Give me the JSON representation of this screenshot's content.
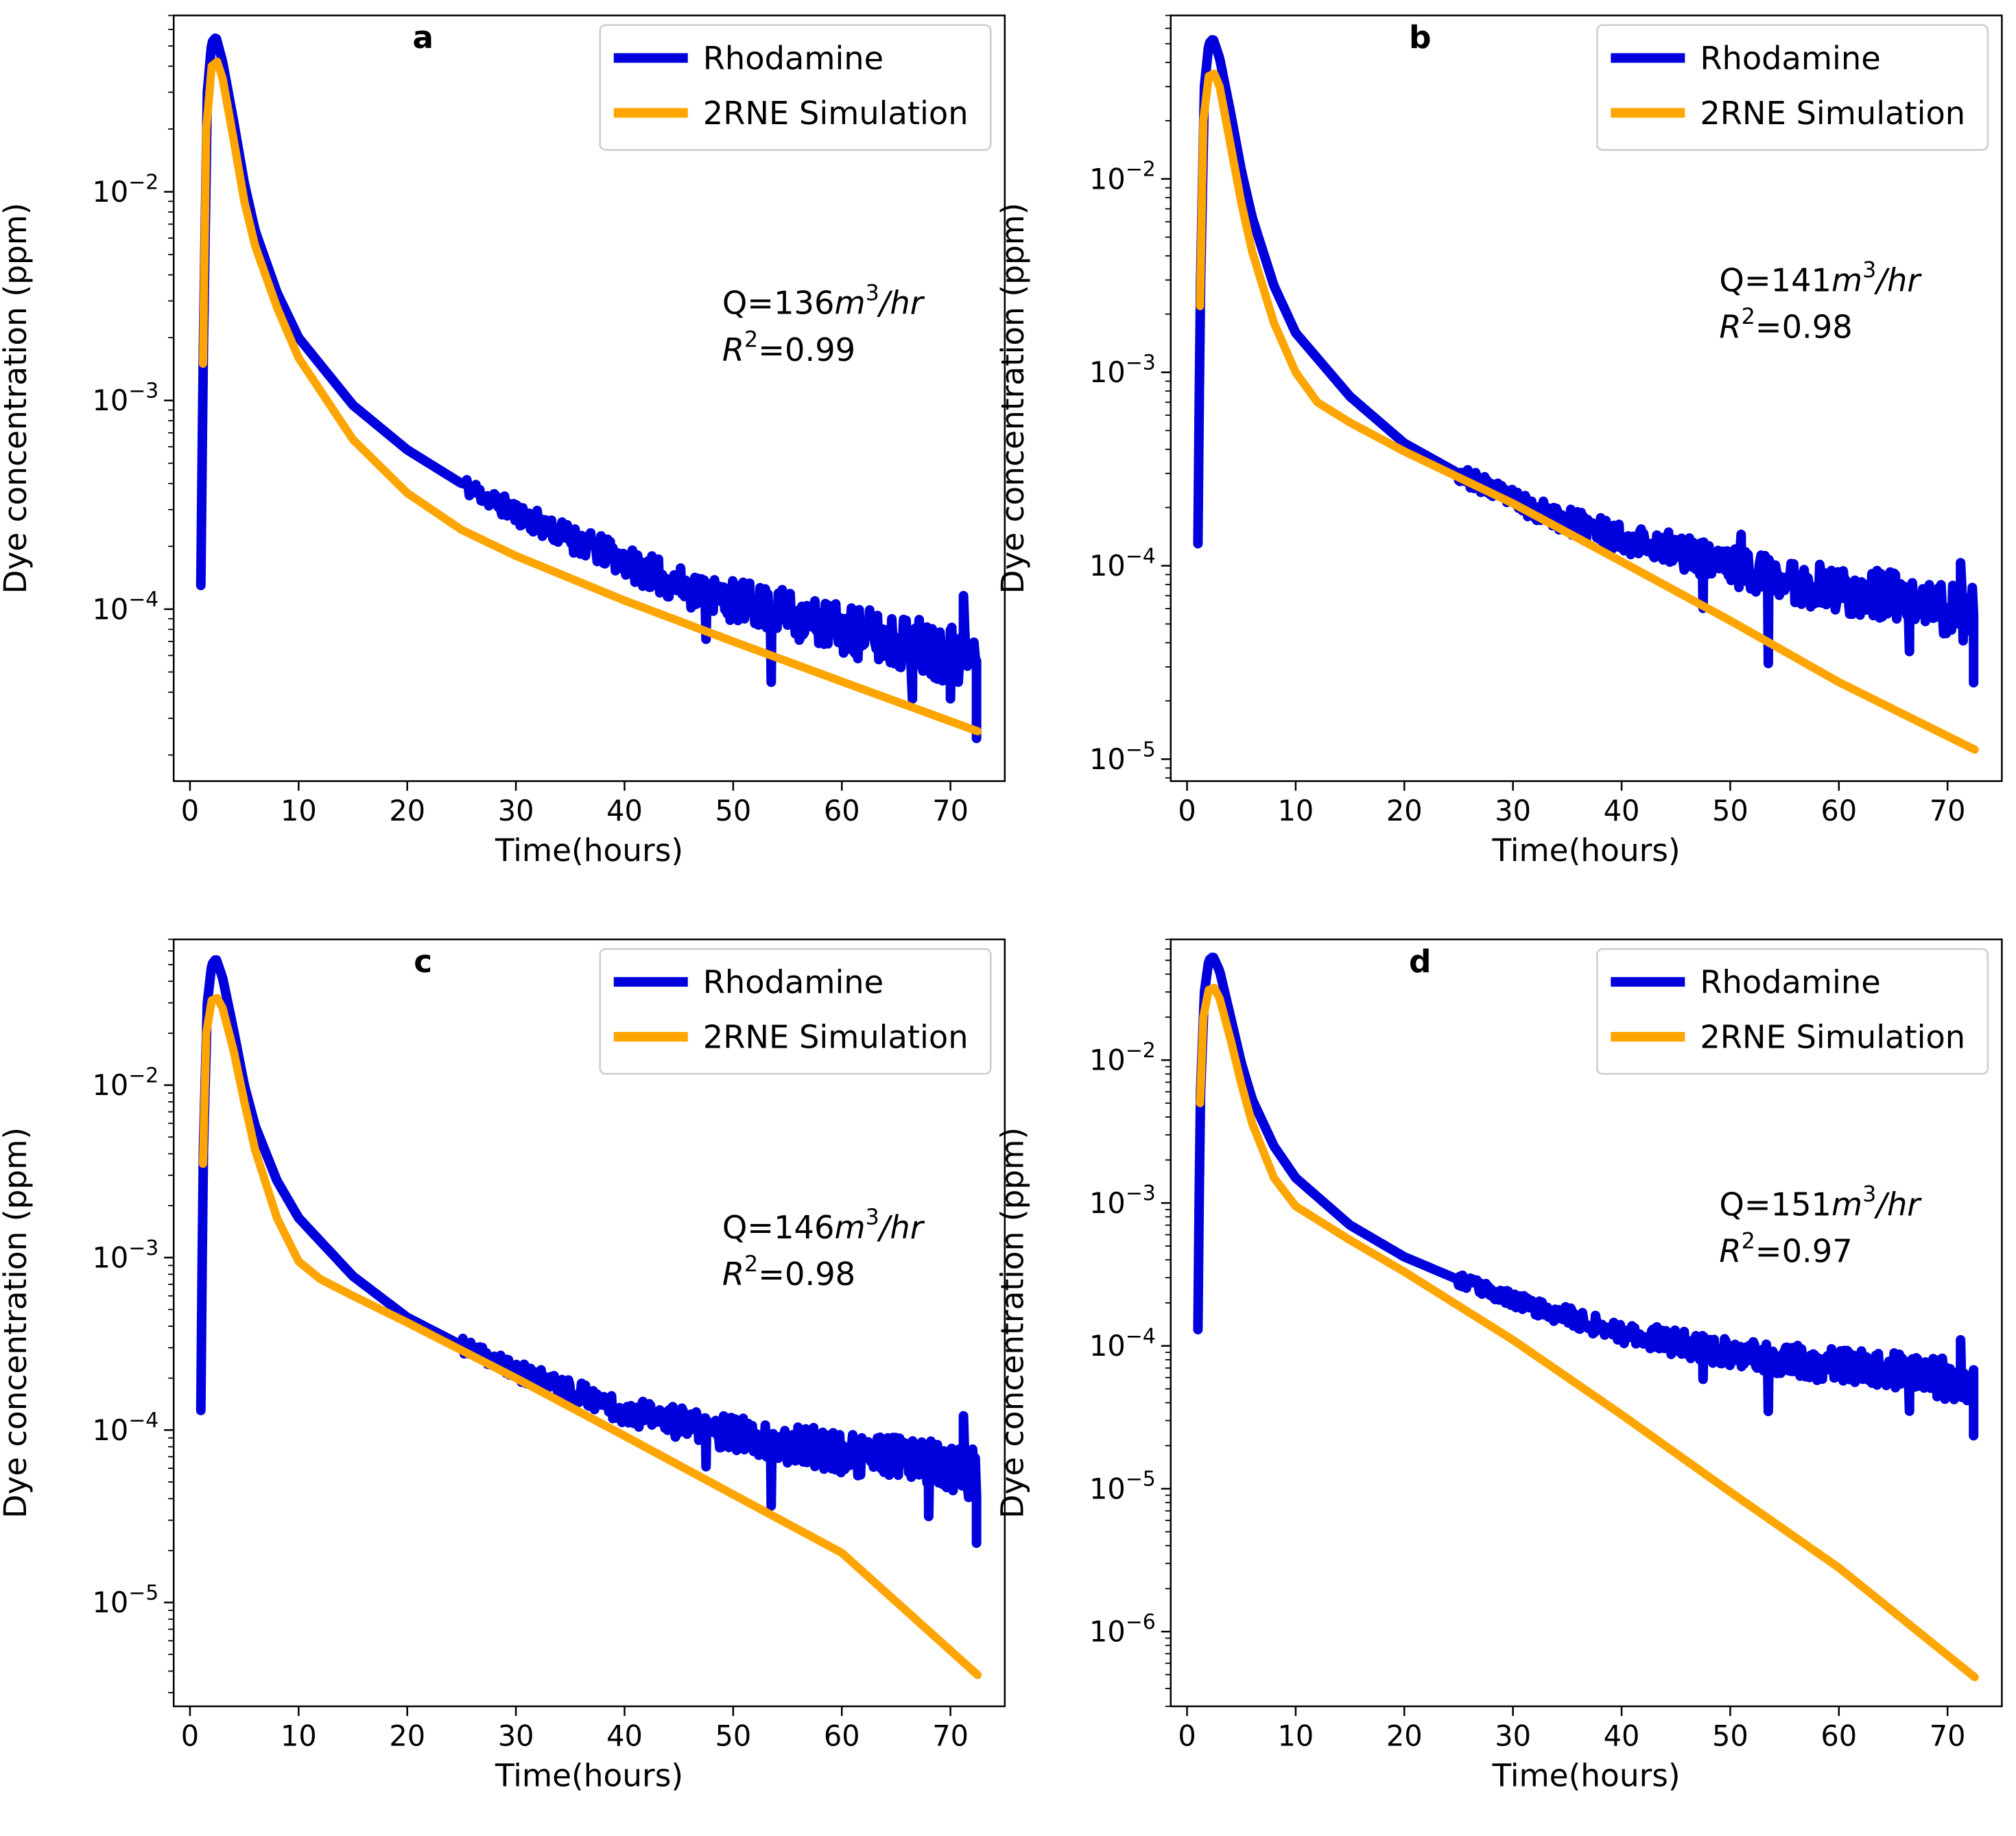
{
  "figure": {
    "background": "#ffffff"
  },
  "legend": {
    "observed_label": "Rhodamine",
    "simulated_label": "2RNE Simulation",
    "observed_color": "#0000dd",
    "simulated_color": "#ffa500"
  },
  "chart_data": [
    {
      "id": "a",
      "panel_label": "a",
      "type": "line",
      "xlabel": "Time(hours)",
      "ylabel": "Dye concentration (ppm)",
      "yscale": "log",
      "xlim": [
        -1.5,
        75
      ],
      "ylim": [
        1.5e-05,
        0.07
      ],
      "x_ticks": [
        {
          "v": 10,
          "label": "10"
        },
        {
          "v": 20,
          "label": "20"
        },
        {
          "v": 30,
          "label": "30"
        },
        {
          "v": 40,
          "label": "40"
        },
        {
          "v": 50,
          "label": "50"
        },
        {
          "v": 60,
          "label": "60"
        },
        {
          "v": 70,
          "label": "70"
        },
        {
          "v": 0,
          "label": "0"
        }
      ],
      "y_ticks": [
        {
          "exp": -2,
          "base": "10",
          "sup": "−2"
        },
        {
          "exp": -3,
          "base": "10",
          "sup": "−3"
        },
        {
          "exp": -4,
          "base": "10",
          "sup": "−4"
        }
      ],
      "annotation": {
        "q_prefix": "Q=136",
        "q_unit": "m",
        "q_exp": "3",
        "q_suffix": "/hr",
        "r2_symbol": "R",
        "r2_exp": "2",
        "r2_value": "=0.99"
      },
      "series": [
        {
          "name": "Rhodamine",
          "role": "observed",
          "color": "#0000dd",
          "x": [
            1.0,
            1.2,
            1.6,
            2.0,
            2.4,
            3.0,
            4.0,
            5.0,
            6.0,
            8.0,
            10,
            15,
            20,
            25,
            30,
            35,
            40,
            45,
            50,
            55,
            60,
            65,
            70,
            72.5
          ],
          "y": [
            0.00013,
            0.0014,
            0.03,
            0.052,
            0.055,
            0.042,
            0.022,
            0.011,
            0.0065,
            0.0033,
            0.002,
            0.00095,
            0.00058,
            0.0004,
            0.00029,
            0.00022,
            0.00017,
            0.00013,
            0.00011,
            9.5e-05,
            8e-05,
            7e-05,
            6.2e-05,
            6e-05
          ],
          "noise": {
            "start_x": 25,
            "seed": 11,
            "base_sigma": 0.1,
            "growth": 0.25,
            "spikes": [
              {
                "x": 47.5,
                "f": 0.6
              },
              {
                "x": 53.5,
                "f": 0.45
              },
              {
                "x": 71.2,
                "f": 1.9
              },
              {
                "x": 66.5,
                "f": 0.55
              },
              {
                "x": 70.0,
                "f": 0.6
              },
              {
                "x": 72.4,
                "f": 0.4
              }
            ]
          }
        },
        {
          "name": "2RNE Simulation",
          "role": "simulated",
          "color": "#ffa500",
          "x": [
            1.2,
            1.5,
            2.0,
            2.5,
            3.0,
            4.0,
            5.0,
            6.0,
            8.0,
            10,
            15,
            20,
            25,
            30,
            40,
            50,
            60,
            72.5
          ],
          "y": [
            0.0015,
            0.02,
            0.04,
            0.042,
            0.035,
            0.018,
            0.009,
            0.0055,
            0.0028,
            0.0016,
            0.00065,
            0.00036,
            0.00024,
            0.00018,
            0.00011,
            7e-05,
            4.5e-05,
            2.6e-05
          ]
        }
      ]
    },
    {
      "id": "b",
      "panel_label": "b",
      "type": "line",
      "xlabel": "Time(hours)",
      "ylabel": "Dye concentration (ppm)",
      "yscale": "log",
      "xlim": [
        -1.5,
        75
      ],
      "ylim": [
        7.7e-06,
        0.07
      ],
      "x_ticks": [
        {
          "v": 10,
          "label": "10"
        },
        {
          "v": 20,
          "label": "20"
        },
        {
          "v": 30,
          "label": "30"
        },
        {
          "v": 40,
          "label": "40"
        },
        {
          "v": 50,
          "label": "50"
        },
        {
          "v": 60,
          "label": "60"
        },
        {
          "v": 70,
          "label": "70"
        },
        {
          "v": 0,
          "label": "0"
        }
      ],
      "y_ticks": [
        {
          "exp": -2,
          "base": "10",
          "sup": "−2"
        },
        {
          "exp": -3,
          "base": "10",
          "sup": "−3"
        },
        {
          "exp": -4,
          "base": "10",
          "sup": "−4"
        },
        {
          "exp": -5,
          "base": "10",
          "sup": "−5"
        }
      ],
      "annotation": {
        "q_prefix": "Q=141",
        "q_unit": "m",
        "q_exp": "3",
        "q_suffix": "/hr",
        "r2_symbol": "R",
        "r2_exp": "2",
        "r2_value": "=0.98"
      },
      "series": [
        {
          "name": "Rhodamine",
          "role": "observed",
          "color": "#0000dd",
          "x": [
            1.0,
            1.2,
            1.6,
            2.0,
            2.4,
            3.0,
            4.0,
            5.0,
            6.0,
            8.0,
            10,
            15,
            20,
            25,
            30,
            35,
            40,
            45,
            50,
            55,
            60,
            65,
            70,
            72.5
          ],
          "y": [
            0.00013,
            0.0022,
            0.03,
            0.05,
            0.053,
            0.042,
            0.022,
            0.011,
            0.0063,
            0.0028,
            0.0016,
            0.00075,
            0.00043,
            0.0003,
            0.00022,
            0.00017,
            0.00014,
            0.00012,
            0.0001,
            8.5e-05,
            7.5e-05,
            6.8e-05,
            6e-05,
            5.5e-05
          ],
          "noise": {
            "start_x": 25,
            "seed": 23,
            "base_sigma": 0.1,
            "growth": 0.25,
            "spikes": [
              {
                "x": 47.5,
                "f": 0.55
              },
              {
                "x": 53.5,
                "f": 0.35
              },
              {
                "x": 51.0,
                "f": 1.5
              },
              {
                "x": 71.2,
                "f": 1.8
              },
              {
                "x": 66.5,
                "f": 0.55
              },
              {
                "x": 72.4,
                "f": 0.45
              }
            ]
          }
        },
        {
          "name": "2RNE Simulation",
          "role": "simulated",
          "color": "#ffa500",
          "x": [
            1.2,
            1.5,
            2.0,
            2.5,
            3.0,
            4.0,
            5.0,
            6.0,
            8.0,
            10,
            12,
            15,
            20,
            30,
            40,
            50,
            60,
            72.5
          ],
          "y": [
            0.0022,
            0.02,
            0.034,
            0.035,
            0.03,
            0.015,
            0.0075,
            0.0042,
            0.0018,
            0.001,
            0.0007,
            0.00055,
            0.00039,
            0.00021,
            0.000105,
            5.2e-05,
            2.5e-05,
            1.12e-05
          ]
        }
      ]
    },
    {
      "id": "c",
      "panel_label": "c",
      "type": "line",
      "xlabel": "Time(hours)",
      "ylabel": "Dye concentration (ppm)",
      "yscale": "log",
      "xlim": [
        -1.5,
        75
      ],
      "ylim": [
        2.5e-06,
        0.07
      ],
      "x_ticks": [
        {
          "v": 10,
          "label": "10"
        },
        {
          "v": 20,
          "label": "20"
        },
        {
          "v": 30,
          "label": "30"
        },
        {
          "v": 40,
          "label": "40"
        },
        {
          "v": 50,
          "label": "50"
        },
        {
          "v": 60,
          "label": "60"
        },
        {
          "v": 70,
          "label": "70"
        },
        {
          "v": 0,
          "label": "0"
        }
      ],
      "y_ticks": [
        {
          "exp": -2,
          "base": "10",
          "sup": "−2"
        },
        {
          "exp": -3,
          "base": "10",
          "sup": "−3"
        },
        {
          "exp": -4,
          "base": "10",
          "sup": "−4"
        },
        {
          "exp": -5,
          "base": "10",
          "sup": "−5"
        }
      ],
      "annotation": {
        "q_prefix": "Q=146",
        "q_unit": "m",
        "q_exp": "3",
        "q_suffix": "/hr",
        "r2_symbol": "R",
        "r2_exp": "2",
        "r2_value": "=0.98"
      },
      "series": [
        {
          "name": "Rhodamine",
          "role": "observed",
          "color": "#0000dd",
          "x": [
            1.0,
            1.2,
            1.6,
            2.0,
            2.4,
            3.0,
            4.0,
            5.0,
            6.0,
            8.0,
            10,
            15,
            20,
            25,
            30,
            35,
            40,
            45,
            50,
            55,
            60,
            65,
            70,
            72.5
          ],
          "y": [
            0.00013,
            0.0035,
            0.03,
            0.05,
            0.054,
            0.042,
            0.021,
            0.01,
            0.0058,
            0.0028,
            0.0017,
            0.00078,
            0.00045,
            0.00031,
            0.00022,
            0.00017,
            0.00013,
            0.00011,
            9.5e-05,
            8.3e-05,
            7.5e-05,
            6.8e-05,
            6e-05,
            5.5e-05
          ],
          "noise": {
            "start_x": 25,
            "seed": 37,
            "base_sigma": 0.1,
            "growth": 0.25,
            "spikes": [
              {
                "x": 47.5,
                "f": 0.6
              },
              {
                "x": 53.5,
                "f": 0.42
              },
              {
                "x": 71.2,
                "f": 2.1
              },
              {
                "x": 68.0,
                "f": 0.5
              },
              {
                "x": 72.4,
                "f": 0.4
              }
            ]
          }
        },
        {
          "name": "2RNE Simulation",
          "role": "simulated",
          "color": "#ffa500",
          "x": [
            1.2,
            1.5,
            2.0,
            2.5,
            3.0,
            4.0,
            5.0,
            6.0,
            8.0,
            10,
            12,
            15,
            20,
            30,
            40,
            50,
            60,
            72.5
          ],
          "y": [
            0.0035,
            0.02,
            0.031,
            0.032,
            0.028,
            0.016,
            0.008,
            0.0042,
            0.0017,
            0.00095,
            0.00075,
            0.0006,
            0.00042,
            0.0002,
            9.25e-05,
            4.23e-05,
            1.94e-05,
            3.8e-06
          ]
        }
      ]
    },
    {
      "id": "d",
      "panel_label": "d",
      "type": "line",
      "xlabel": "Time(hours)",
      "ylabel": "Dye concentration (ppm)",
      "yscale": "log",
      "xlim": [
        -1.5,
        75
      ],
      "ylim": [
        3e-07,
        0.07
      ],
      "x_ticks": [
        {
          "v": 10,
          "label": "10"
        },
        {
          "v": 20,
          "label": "20"
        },
        {
          "v": 30,
          "label": "30"
        },
        {
          "v": 40,
          "label": "40"
        },
        {
          "v": 50,
          "label": "50"
        },
        {
          "v": 60,
          "label": "60"
        },
        {
          "v": 70,
          "label": "70"
        },
        {
          "v": 0,
          "label": "0"
        }
      ],
      "y_ticks": [
        {
          "exp": -2,
          "base": "10",
          "sup": "−2"
        },
        {
          "exp": -3,
          "base": "10",
          "sup": "−3"
        },
        {
          "exp": -4,
          "base": "10",
          "sup": "−4"
        },
        {
          "exp": -5,
          "base": "10",
          "sup": "−5"
        },
        {
          "exp": -6,
          "base": "10",
          "sup": "−6"
        }
      ],
      "annotation": {
        "q_prefix": "Q=151",
        "q_unit": "m",
        "q_exp": "3",
        "q_suffix": "/hr",
        "r2_symbol": "R",
        "r2_exp": "2",
        "r2_value": "=0.97"
      },
      "series": [
        {
          "name": "Rhodamine",
          "role": "observed",
          "color": "#0000dd",
          "x": [
            1.0,
            1.2,
            1.6,
            2.0,
            2.4,
            3.0,
            4.0,
            5.0,
            6.0,
            8.0,
            10,
            15,
            20,
            25,
            30,
            35,
            40,
            45,
            50,
            55,
            60,
            65,
            70,
            72.5
          ],
          "y": [
            0.00013,
            0.005,
            0.03,
            0.05,
            0.053,
            0.042,
            0.02,
            0.0095,
            0.0053,
            0.0025,
            0.0015,
            0.0007,
            0.00042,
            0.00029,
            0.00021,
            0.00016,
            0.000125,
            0.000105,
            9e-05,
            8e-05,
            7.2e-05,
            6.6e-05,
            5.8e-05,
            5.2e-05
          ],
          "noise": {
            "start_x": 25,
            "seed": 53,
            "base_sigma": 0.1,
            "growth": 0.25,
            "spikes": [
              {
                "x": 47.5,
                "f": 0.6
              },
              {
                "x": 53.5,
                "f": 0.42
              },
              {
                "x": 71.2,
                "f": 2.0
              },
              {
                "x": 66.5,
                "f": 0.55
              },
              {
                "x": 72.4,
                "f": 0.45
              }
            ]
          }
        },
        {
          "name": "2RNE Simulation",
          "role": "simulated",
          "color": "#ffa500",
          "x": [
            1.2,
            1.5,
            2.0,
            2.5,
            3.0,
            4.0,
            5.0,
            6.0,
            8.0,
            10,
            15,
            20,
            30,
            40,
            50,
            60,
            72.5
          ],
          "y": [
            0.005,
            0.02,
            0.031,
            0.032,
            0.027,
            0.014,
            0.0068,
            0.0036,
            0.0015,
            0.00095,
            0.00055,
            0.00033,
            0.00011,
            3.3e-05,
            9.5e-06,
            2.8e-06,
            4.8e-07
          ]
        }
      ]
    }
  ]
}
